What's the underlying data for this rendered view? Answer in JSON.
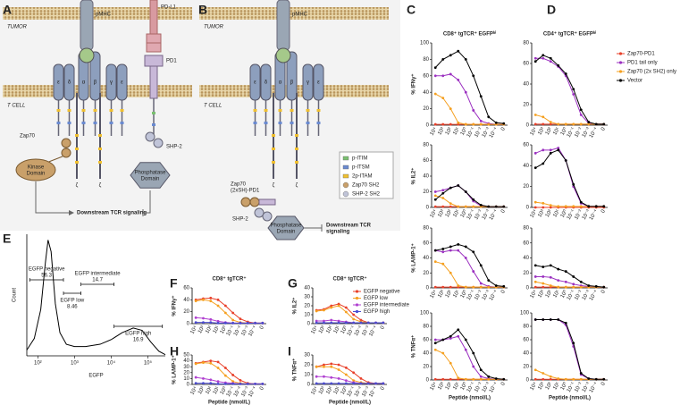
{
  "panel_labels": [
    "A",
    "B",
    "C",
    "D",
    "E",
    "F",
    "G",
    "H",
    "I"
  ],
  "diagram_a": {
    "tumor": "TUMOR",
    "tcell": "T CELL",
    "pmhc": "pMHC",
    "chains": [
      "ε",
      "δ",
      "α",
      "β",
      "γ",
      "ε"
    ],
    "zeta": [
      "ζ",
      "ζ"
    ],
    "pdl1": "PD-L1",
    "pd1": "PD1",
    "zap70": "Zap70",
    "kinase": [
      "Kinase",
      "Domain"
    ],
    "shp2": "SHP-2",
    "phosphatase": [
      "Phosphatase",
      "Domain"
    ],
    "downstream": "Downstream TCR signaling"
  },
  "diagram_b": {
    "tumor": "TUMOR",
    "tcell": "T CELL",
    "pmhc": "pMHC",
    "chains": [
      "ε",
      "δ",
      "α",
      "β",
      "γ",
      "ε"
    ],
    "zeta": [
      "ζ",
      "ζ"
    ],
    "fusion": [
      "Zap70",
      "(2xSH)-PD1"
    ],
    "shp2": "SHP-2",
    "phosphatase": [
      "Phosphatase",
      "Domain"
    ],
    "downstream": [
      "Downstream TCR",
      "signaling"
    ],
    "legend": [
      "p-ITIM",
      "p-ITSM",
      "2p-ITAM",
      "Zap70 SH2",
      "SHP-2 SH2"
    ]
  },
  "chart_data": [
    {
      "type": "density",
      "ylabel": "Count",
      "xlabel": "EGFP",
      "xscale": "log",
      "color": "#000000",
      "x": [
        50,
        80,
        120,
        160,
        190,
        230,
        300,
        400,
        600,
        1000,
        2000,
        5000,
        10000,
        20000,
        40000,
        70000,
        120000,
        200000,
        300000
      ],
      "values": [
        5,
        15,
        40,
        80,
        100,
        90,
        45,
        20,
        10,
        8,
        8,
        10,
        14,
        20,
        24,
        22,
        12,
        4,
        1
      ],
      "xlim": [
        50,
        300000
      ],
      "ylim": [
        0,
        105
      ],
      "xticks": [
        {
          "value": 100,
          "label": "10²"
        },
        {
          "value": 1000,
          "label": "10³"
        },
        {
          "value": 10000,
          "label": "10⁴"
        },
        {
          "value": 100000,
          "label": "10⁵"
        }
      ],
      "gates": [
        {
          "name": "EGFP negative",
          "value": 56.3,
          "range": [
            60,
            500
          ]
        },
        {
          "name": "EGFP low",
          "value": 8.46,
          "range": [
            500,
            1500
          ]
        },
        {
          "name": "EGFP intermediate",
          "value": 14.7,
          "range": [
            1500,
            12000
          ]
        },
        {
          "name": "EGFP high",
          "value": 16.9,
          "range": [
            12000,
            250000
          ]
        }
      ]
    },
    {
      "type": "line",
      "title": "CD8⁺ tgTCR⁺ EGFPʰⁱ",
      "ylabel": "% IFNγ⁺",
      "categories": [
        "10⁴",
        "10³",
        "10²",
        "10¹",
        "10⁰",
        "10⁻¹",
        "10⁻²",
        "10⁻³",
        "10⁻⁴",
        "0"
      ],
      "ylim": [
        0,
        100
      ],
      "yticks": [
        0,
        20,
        40,
        60,
        80,
        100
      ],
      "series": [
        {
          "color": "#e8402a",
          "values": [
            1,
            1,
            1,
            1,
            1,
            1,
            1,
            1,
            1,
            1
          ]
        },
        {
          "color": "#9b30c0",
          "values": [
            60,
            60,
            62,
            55,
            40,
            18,
            5,
            2,
            1,
            1
          ]
        },
        {
          "color": "#f5a020",
          "values": [
            38,
            33,
            20,
            3,
            1,
            1,
            1,
            1,
            1,
            1
          ]
        },
        {
          "color": "#000000",
          "values": [
            70,
            80,
            85,
            90,
            80,
            60,
            35,
            10,
            3,
            2
          ]
        }
      ]
    },
    {
      "type": "line",
      "ylabel": "% IL2⁺",
      "categories": [
        "10⁴",
        "10³",
        "10²",
        "10¹",
        "10⁰",
        "10⁻¹",
        "10⁻²",
        "10⁻³",
        "10⁻⁴",
        "0"
      ],
      "ylim": [
        0,
        80
      ],
      "yticks": [
        0,
        20,
        40,
        60,
        80
      ],
      "series": [
        {
          "color": "#e8402a",
          "values": [
            1,
            1,
            1,
            1,
            1,
            1,
            1,
            1,
            1,
            1
          ]
        },
        {
          "color": "#9b30c0",
          "values": [
            20,
            22,
            25,
            28,
            20,
            8,
            2,
            1,
            1,
            1
          ]
        },
        {
          "color": "#f5a020",
          "values": [
            15,
            12,
            5,
            1,
            1,
            1,
            1,
            1,
            1,
            1
          ]
        },
        {
          "color": "#000000",
          "values": [
            10,
            18,
            25,
            28,
            20,
            10,
            3,
            1,
            1,
            1
          ]
        }
      ]
    },
    {
      "type": "line",
      "ylabel": "% LAMP-1⁺",
      "categories": [
        "10⁴",
        "10³",
        "10²",
        "10¹",
        "10⁰",
        "10⁻¹",
        "10⁻²",
        "10⁻³",
        "10⁻⁴",
        "0"
      ],
      "ylim": [
        0,
        80
      ],
      "yticks": [
        0,
        20,
        40,
        60,
        80
      ],
      "series": [
        {
          "color": "#e8402a",
          "values": [
            1,
            1,
            1,
            1,
            1,
            1,
            1,
            1,
            1,
            1
          ]
        },
        {
          "color": "#9b30c0",
          "values": [
            50,
            48,
            50,
            50,
            40,
            22,
            6,
            2,
            1,
            1
          ]
        },
        {
          "color": "#f5a020",
          "values": [
            35,
            32,
            20,
            3,
            1,
            1,
            1,
            1,
            1,
            1
          ]
        },
        {
          "color": "#000000",
          "values": [
            50,
            52,
            55,
            58,
            55,
            48,
            30,
            10,
            3,
            2
          ]
        }
      ]
    },
    {
      "type": "line",
      "ylabel": "% TNFα⁺",
      "xlabel": "Peptide (nmol/L)",
      "categories": [
        "10⁴",
        "10³",
        "10²",
        "10¹",
        "10⁰",
        "10⁻¹",
        "10⁻²",
        "10⁻³",
        "10⁻⁴",
        "0"
      ],
      "ylim": [
        0,
        100
      ],
      "yticks": [
        0,
        20,
        40,
        60,
        80,
        100
      ],
      "series": [
        {
          "color": "#e8402a",
          "values": [
            1,
            1,
            1,
            1,
            1,
            1,
            1,
            1,
            1,
            1
          ]
        },
        {
          "color": "#9b30c0",
          "values": [
            60,
            60,
            62,
            65,
            45,
            20,
            5,
            2,
            1,
            1
          ]
        },
        {
          "color": "#f5a020",
          "values": [
            45,
            40,
            25,
            3,
            1,
            1,
            1,
            1,
            1,
            1
          ]
        },
        {
          "color": "#000000",
          "values": [
            55,
            60,
            65,
            75,
            60,
            40,
            15,
            5,
            2,
            1
          ]
        }
      ]
    },
    {
      "type": "line",
      "title": "CD4⁺ tgTCR⁺ EGFPʰⁱ",
      "legend": "right",
      "categories": [
        "10⁴",
        "10³",
        "10²",
        "10¹",
        "10⁰",
        "10⁻¹",
        "10⁻²",
        "10⁻³",
        "10⁻⁴",
        "0"
      ],
      "ylim": [
        0,
        80
      ],
      "yticks": [
        0,
        20,
        40,
        60,
        80
      ],
      "series": [
        {
          "name": "Zap70-PD1",
          "color": "#e8402a",
          "values": [
            1,
            1,
            1,
            1,
            1,
            1,
            1,
            1,
            1,
            1
          ]
        },
        {
          "name": "PD1 tail only",
          "color": "#9b30c0",
          "values": [
            65,
            65,
            62,
            57,
            48,
            30,
            10,
            2,
            1,
            1
          ]
        },
        {
          "name": "Zap70 (2x SH2) only",
          "color": "#f5a020",
          "values": [
            10,
            8,
            3,
            1,
            1,
            1,
            1,
            1,
            1,
            1
          ]
        },
        {
          "name": "Vector",
          "color": "#000000",
          "values": [
            62,
            68,
            65,
            58,
            50,
            35,
            15,
            3,
            1,
            1
          ]
        }
      ]
    },
    {
      "type": "line",
      "categories": [
        "10⁴",
        "10³",
        "10²",
        "10¹",
        "10⁰",
        "10⁻¹",
        "10⁻²",
        "10⁻³",
        "10⁻⁴",
        "0"
      ],
      "ylim": [
        0,
        60
      ],
      "yticks": [
        0,
        20,
        40,
        60
      ],
      "series": [
        {
          "color": "#e8402a",
          "values": [
            0,
            0,
            0,
            0,
            0,
            0,
            0,
            0,
            0,
            0
          ]
        },
        {
          "color": "#9b30c0",
          "values": [
            52,
            55,
            55,
            57,
            45,
            20,
            4,
            1,
            1,
            1
          ]
        },
        {
          "color": "#f5a020",
          "values": [
            5,
            4,
            2,
            1,
            1,
            1,
            1,
            1,
            1,
            1
          ]
        },
        {
          "color": "#000000",
          "values": [
            38,
            42,
            52,
            55,
            45,
            22,
            5,
            1,
            1,
            1
          ]
        }
      ]
    },
    {
      "type": "line",
      "categories": [
        "10⁴",
        "10³",
        "10²",
        "10¹",
        "10⁰",
        "10⁻¹",
        "10⁻²",
        "10⁻³",
        "10⁻⁴",
        "0"
      ],
      "ylim": [
        0,
        80
      ],
      "yticks": [
        0,
        20,
        40,
        60,
        80
      ],
      "series": [
        {
          "color": "#e8402a",
          "values": [
            1,
            1,
            1,
            1,
            1,
            1,
            1,
            1,
            1,
            1
          ]
        },
        {
          "color": "#9b30c0",
          "values": [
            15,
            15,
            14,
            10,
            8,
            5,
            3,
            2,
            1,
            1
          ]
        },
        {
          "color": "#f5a020",
          "values": [
            8,
            6,
            3,
            1,
            1,
            1,
            1,
            1,
            1,
            1
          ]
        },
        {
          "color": "#000000",
          "values": [
            30,
            28,
            30,
            25,
            22,
            15,
            8,
            3,
            2,
            1
          ]
        }
      ]
    },
    {
      "type": "line",
      "xlabel": "Peptide (nmol/L)",
      "categories": [
        "10⁴",
        "10³",
        "10²",
        "10¹",
        "10⁰",
        "10⁻¹",
        "10⁻²",
        "10⁻³",
        "10⁻⁴",
        "0"
      ],
      "ylim": [
        0,
        100
      ],
      "yticks": [
        0,
        20,
        40,
        60,
        80,
        100
      ],
      "series": [
        {
          "color": "#e8402a",
          "values": [
            1,
            1,
            1,
            1,
            1,
            1,
            1,
            1,
            1,
            1
          ]
        },
        {
          "color": "#9b30c0",
          "values": [
            90,
            90,
            90,
            90,
            82,
            50,
            8,
            2,
            1,
            1
          ]
        },
        {
          "color": "#f5a020",
          "values": [
            15,
            10,
            5,
            2,
            1,
            1,
            1,
            1,
            1,
            1
          ]
        },
        {
          "color": "#000000",
          "values": [
            90,
            90,
            90,
            90,
            85,
            55,
            10,
            2,
            1,
            1
          ]
        }
      ]
    },
    {
      "type": "line",
      "title": "CD8⁺ tgTCR⁺",
      "ylabel": "% IFNγ⁺",
      "categories": [
        "10⁴",
        "10³",
        "10²",
        "10¹",
        "10⁰",
        "10⁻¹",
        "10⁻²",
        "10⁻³",
        "10⁻⁴",
        "0"
      ],
      "ylim": [
        0,
        60
      ],
      "yticks": [
        0,
        20,
        40,
        60
      ],
      "series": [
        {
          "color": "#e8402a",
          "values": [
            40,
            42,
            43,
            40,
            30,
            18,
            8,
            3,
            1,
            1
          ]
        },
        {
          "color": "#f5a020",
          "values": [
            38,
            40,
            38,
            30,
            18,
            6,
            2,
            1,
            1,
            1
          ]
        },
        {
          "color": "#b040d0",
          "values": [
            10,
            9,
            7,
            4,
            2,
            1,
            1,
            1,
            1,
            1
          ]
        },
        {
          "color": "#4a4ad0",
          "values": [
            2,
            2,
            2,
            1,
            1,
            1,
            1,
            1,
            1,
            1
          ]
        }
      ]
    },
    {
      "type": "line",
      "title": "CD8⁺ tgTCR⁺",
      "ylabel": "% IL2⁺",
      "legend": "upper right",
      "categories": [
        "10⁴",
        "10³",
        "10²",
        "10¹",
        "10⁰",
        "10⁻¹",
        "10⁻²",
        "10⁻³",
        "10⁻⁴",
        "0"
      ],
      "ylim": [
        0,
        40
      ],
      "yticks": [
        0,
        10,
        20,
        30,
        40
      ],
      "series": [
        {
          "name": "EGFP negative",
          "color": "#e8402a",
          "values": [
            15,
            16,
            20,
            22,
            18,
            10,
            4,
            1,
            1,
            1
          ]
        },
        {
          "name": "EGFP low",
          "color": "#f5a020",
          "values": [
            14,
            15,
            18,
            20,
            13,
            5,
            2,
            1,
            1,
            1
          ]
        },
        {
          "name": "EGFP intermediate",
          "color": "#b040d0",
          "values": [
            3,
            3,
            4,
            3,
            2,
            1,
            1,
            1,
            1,
            1
          ]
        },
        {
          "name": "EGFP high",
          "color": "#4a4ad0",
          "values": [
            1,
            1,
            1,
            1,
            1,
            1,
            1,
            1,
            1,
            1
          ]
        }
      ]
    },
    {
      "type": "line",
      "ylabel": "% LAMP-1⁺",
      "xlabel": "Peptide (nmol/L)",
      "categories": [
        "10⁴",
        "10³",
        "10²",
        "10¹",
        "10⁰",
        "10⁻¹",
        "10⁻²",
        "10⁻³",
        "10⁻⁴",
        "0"
      ],
      "ylim": [
        0,
        50
      ],
      "yticks": [
        0,
        10,
        20,
        30,
        40,
        50
      ],
      "series": [
        {
          "color": "#e8402a",
          "values": [
            36,
            38,
            40,
            38,
            28,
            16,
            7,
            2,
            1,
            1
          ]
        },
        {
          "color": "#f5a020",
          "values": [
            35,
            37,
            36,
            28,
            15,
            5,
            2,
            1,
            1,
            1
          ]
        },
        {
          "color": "#b040d0",
          "values": [
            12,
            10,
            8,
            5,
            3,
            2,
            1,
            1,
            1,
            1
          ]
        },
        {
          "color": "#4a4ad0",
          "values": [
            2,
            2,
            2,
            1,
            1,
            1,
            1,
            1,
            1,
            1
          ]
        }
      ]
    },
    {
      "type": "line",
      "ylabel": "% TNFα⁺",
      "xlabel": "Peptide (nmol/L)",
      "categories": [
        "10⁴",
        "10³",
        "10²",
        "10¹",
        "10⁰",
        "10⁻¹",
        "10⁻²",
        "10⁻³",
        "10⁻⁴",
        "0"
      ],
      "ylim": [
        0,
        30
      ],
      "yticks": [
        0,
        10,
        20,
        30
      ],
      "series": [
        {
          "color": "#e8402a",
          "values": [
            18,
            20,
            21,
            20,
            17,
            12,
            6,
            2,
            1,
            1
          ]
        },
        {
          "color": "#f5a020",
          "values": [
            18,
            18,
            18,
            15,
            10,
            4,
            2,
            1,
            1,
            1
          ]
        },
        {
          "color": "#b040d0",
          "values": [
            8,
            8,
            7,
            6,
            4,
            2,
            1,
            1,
            1,
            1
          ]
        },
        {
          "color": "#4a4ad0",
          "values": [
            1,
            1,
            1,
            1,
            1,
            1,
            1,
            1,
            1,
            1
          ]
        }
      ]
    }
  ]
}
